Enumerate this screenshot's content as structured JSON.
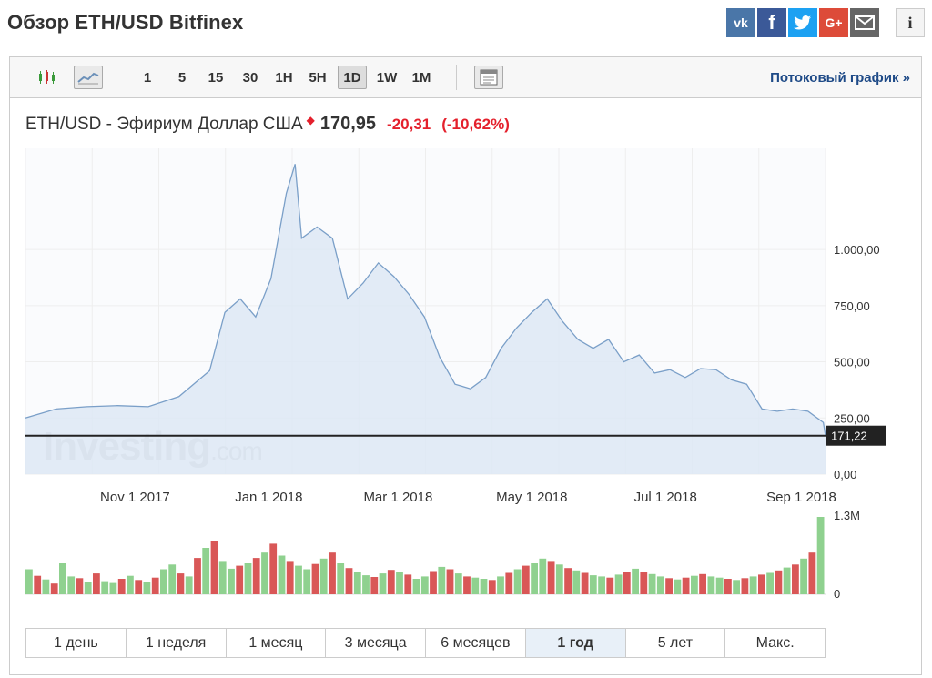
{
  "page": {
    "title": "Обзор ETH/USD Bitfinex"
  },
  "social": {
    "vk": "vk-icon",
    "facebook": "facebook-icon",
    "twitter": "twitter-icon",
    "google_plus": "google-plus-icon",
    "mail": "mail-icon",
    "info": "info-icon"
  },
  "toolbar": {
    "intervals": [
      "1",
      "5",
      "15",
      "30",
      "1H",
      "5H",
      "1D",
      "1W",
      "1M"
    ],
    "active_interval": "1D",
    "stream_link": "Потоковый график »"
  },
  "quote": {
    "name": "ETH/USD - Эфириум Доллар США",
    "price": "170,95",
    "change": "-20,31",
    "change_pct": "(-10,62%)"
  },
  "colors": {
    "line": "#7a9fc8",
    "area": "#dde8f4",
    "down": "#e4202c",
    "vol_up": "#8fd18f",
    "vol_down": "#d95757",
    "link": "#1e4a87"
  },
  "chart_data": {
    "type": "area",
    "x": [
      "2017-09-12",
      "2017-09-26",
      "2017-10-10",
      "2017-10-24",
      "2017-11-07",
      "2017-11-21",
      "2017-12-05",
      "2017-12-12",
      "2017-12-19",
      "2017-12-26",
      "2018-01-02",
      "2018-01-09",
      "2018-01-13",
      "2018-01-16",
      "2018-01-23",
      "2018-01-30",
      "2018-02-06",
      "2018-02-13",
      "2018-02-20",
      "2018-02-27",
      "2018-03-06",
      "2018-03-13",
      "2018-03-20",
      "2018-03-27",
      "2018-04-03",
      "2018-04-10",
      "2018-04-17",
      "2018-04-24",
      "2018-05-01",
      "2018-05-08",
      "2018-05-15",
      "2018-05-22",
      "2018-05-29",
      "2018-06-05",
      "2018-06-12",
      "2018-06-19",
      "2018-06-26",
      "2018-07-03",
      "2018-07-10",
      "2018-07-17",
      "2018-07-24",
      "2018-07-31",
      "2018-08-07",
      "2018-08-14",
      "2018-08-21",
      "2018-08-28",
      "2018-09-04",
      "2018-09-11",
      "2018-09-12"
    ],
    "series": [
      {
        "values": [
          250,
          290,
          300,
          305,
          300,
          345,
          460,
          720,
          780,
          700,
          870,
          1250,
          1380,
          1050,
          1100,
          1050,
          780,
          850,
          940,
          880,
          800,
          700,
          520,
          400,
          380,
          430,
          560,
          650,
          720,
          780,
          680,
          600,
          560,
          600,
          500,
          530,
          450,
          465,
          430,
          470,
          465,
          420,
          400,
          290,
          280,
          290,
          280,
          230,
          170
        ]
      }
    ],
    "y_ticks": [
      "0,00",
      "250,00",
      "500,00",
      "750,00",
      "1.000,00"
    ],
    "x_ticks": [
      "Nov 1 2017",
      "Jan 1 2018",
      "Mar 1 2018",
      "May 1 2018",
      "Jul 1 2018",
      "Sep 1 2018"
    ],
    "ylim": [
      0,
      1450
    ],
    "last_value_label": "171,22",
    "last_value": 171.22,
    "watermark": {
      "brand": "Investing",
      "suffix": ".com"
    },
    "volume": {
      "max_label": "1.3M",
      "min_label": "0",
      "max": 1300000,
      "values": [
        420000,
        310000,
        250000,
        180000,
        520000,
        300000,
        270000,
        210000,
        350000,
        220000,
        190000,
        260000,
        310000,
        240000,
        200000,
        280000,
        420000,
        500000,
        350000,
        300000,
        610000,
        780000,
        900000,
        560000,
        430000,
        480000,
        520000,
        610000,
        700000,
        850000,
        650000,
        560000,
        480000,
        420000,
        510000,
        600000,
        700000,
        520000,
        440000,
        380000,
        320000,
        290000,
        350000,
        410000,
        380000,
        330000,
        260000,
        300000,
        390000,
        460000,
        420000,
        350000,
        300000,
        280000,
        260000,
        240000,
        300000,
        360000,
        420000,
        480000,
        520000,
        600000,
        560000,
        500000,
        440000,
        400000,
        360000,
        320000,
        300000,
        280000,
        330000,
        380000,
        430000,
        380000,
        340000,
        300000,
        270000,
        250000,
        280000,
        310000,
        340000,
        300000,
        280000,
        260000,
        240000,
        270000,
        300000,
        330000,
        360000,
        400000,
        450000,
        500000,
        600000,
        700000,
        1300000
      ],
      "up": [
        1,
        0,
        1,
        0,
        1,
        1,
        0,
        1,
        0,
        1,
        1,
        0,
        1,
        0,
        1,
        0,
        1,
        1,
        0,
        1,
        0,
        1,
        0,
        1,
        1,
        0,
        1,
        0,
        1,
        0,
        1,
        0,
        1,
        1,
        0,
        1,
        0,
        1,
        0,
        1,
        1,
        0,
        1,
        0,
        1,
        0,
        1,
        1,
        0,
        1,
        0,
        1,
        0,
        1,
        1,
        0,
        1,
        0,
        1,
        0,
        1,
        1,
        0,
        1,
        0,
        1,
        0,
        1,
        1,
        0,
        1,
        0,
        1,
        0,
        1,
        1,
        0,
        1,
        0,
        1,
        0,
        1,
        1,
        0,
        1,
        0,
        1,
        0,
        1,
        0,
        1,
        0,
        1,
        0,
        1
      ]
    }
  },
  "ranges": {
    "items": [
      "1 день",
      "1 неделя",
      "1 месяц",
      "3 месяца",
      "6 месяцев",
      "1 год",
      "5 лет",
      "Макс."
    ],
    "active": "1 год"
  }
}
